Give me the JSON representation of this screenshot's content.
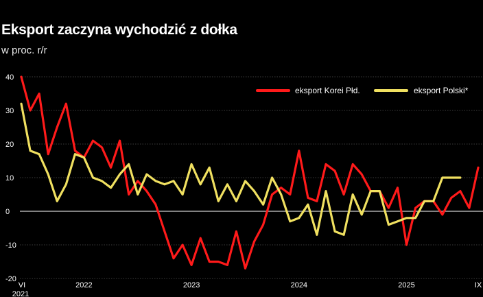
{
  "title": "Eksport zaczyna wychodzić z dołka",
  "subtitle": "w proc. r/r",
  "chart_data": {
    "type": "line",
    "title": "Eksport zaczyna wychodzić z dołka",
    "ylabel": "w proc. r/r",
    "ylim": [
      -20,
      40
    ],
    "yticks": [
      -20,
      -10,
      0,
      10,
      20,
      30,
      40
    ],
    "grid": true,
    "legend_position": "top-right",
    "x_ticks": [
      {
        "label": "VI",
        "label2": "2021",
        "index": 0
      },
      {
        "label": "2022",
        "index": 7
      },
      {
        "label": "2023",
        "index": 19
      },
      {
        "label": "2024",
        "index": 31
      },
      {
        "label": "2025",
        "index": 43
      },
      {
        "label": "IX",
        "index": 51
      }
    ],
    "series": [
      {
        "name": "eksport Korei Płd.",
        "color": "#ff1a1a",
        "values": [
          40,
          30,
          35,
          17,
          25,
          32,
          18,
          16,
          21,
          19,
          13,
          21,
          5,
          9,
          6,
          2,
          -6,
          -14,
          -10,
          -16,
          -8,
          -15,
          -15,
          -16,
          -6,
          -17,
          -9,
          -4,
          5,
          7,
          5,
          18,
          4,
          3,
          14,
          12,
          5,
          14,
          11,
          6,
          6,
          1,
          7,
          -10,
          1,
          3,
          3,
          -1,
          4,
          6,
          1,
          13
        ]
      },
      {
        "name": "eksport Polski*",
        "color": "#f0e060",
        "values": [
          32,
          18,
          17,
          11,
          3,
          8,
          17,
          16,
          10,
          9,
          7,
          11,
          14,
          5,
          11,
          9,
          8,
          9,
          5,
          14,
          8,
          13,
          3,
          8,
          3,
          9,
          6,
          2,
          10,
          5,
          -3,
          -2,
          2,
          -7,
          6,
          -6,
          -7,
          5,
          -1,
          6,
          6,
          -4,
          -3,
          -2,
          -2,
          3,
          3,
          10,
          10,
          10
        ]
      }
    ]
  }
}
